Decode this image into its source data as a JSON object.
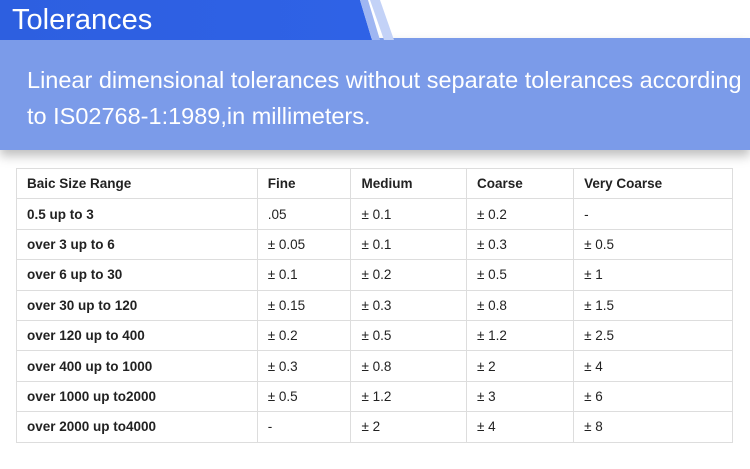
{
  "title": "Tolerances",
  "description": "Linear dimensional tolerances without separate tolerances according to IS02768-1:1989,in millimeters.",
  "colors": {
    "title_bar": "#2d5fe0",
    "panel": "#7b9be9"
  },
  "table": {
    "headers": [
      "Baic Size Range",
      "Fine",
      "Medium",
      "Coarse",
      "Very Coarse"
    ],
    "rows": [
      [
        "0.5 up to 3",
        ".05",
        "± 0.1",
        "± 0.2",
        "-"
      ],
      [
        "over 3 up to 6",
        "± 0.05",
        "± 0.1",
        "± 0.3",
        "± 0.5"
      ],
      [
        "over 6 up to 30",
        "± 0.1",
        "± 0.2",
        "± 0.5",
        "± 1"
      ],
      [
        "over 30 up to 120",
        "± 0.15",
        "± 0.3",
        "± 0.8",
        "± 1.5"
      ],
      [
        "over 120 up to 400",
        "± 0.2",
        "± 0.5",
        "± 1.2",
        "± 2.5"
      ],
      [
        "over 400 up to 1000",
        "± 0.3",
        "± 0.8",
        "± 2",
        "± 4"
      ],
      [
        "over 1000 up to2000",
        "± 0.5",
        "± 1.2",
        "± 3",
        "± 6"
      ],
      [
        "over 2000 up to4000",
        "-",
        "± 2",
        "± 4",
        "± 8"
      ]
    ]
  }
}
